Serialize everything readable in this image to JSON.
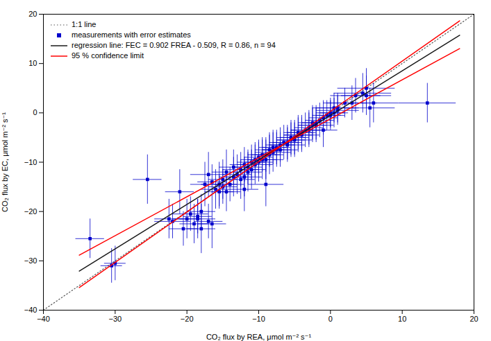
{
  "chart_data": {
    "type": "scatter",
    "xlabel": "CO₂ flux by REA, μmol m⁻² s⁻¹",
    "ylabel": "CO₂ flux by EC, μmol m⁻² s⁻¹",
    "xlim": [
      -40,
      20
    ],
    "ylim": [
      -40,
      20
    ],
    "xticks": [
      -40,
      -30,
      -20,
      -10,
      0,
      10,
      20
    ],
    "yticks": [
      -40,
      -30,
      -20,
      -10,
      0,
      10,
      20
    ],
    "grid": false,
    "legend": "upper left",
    "series": [
      {
        "name": "1:1 line",
        "type": "line",
        "line_style": "dotted",
        "color": "#555555",
        "x": [
          -40,
          20
        ],
        "y": [
          -40,
          20
        ]
      },
      {
        "name": "measurements with error estimates",
        "type": "scatter",
        "marker": "square",
        "color": "#0000cc",
        "x": [
          -33.5,
          -30.5,
          -30.0,
          -25.5,
          -22.5,
          -22.0,
          -21.0,
          -20.5,
          -20.0,
          -19.5,
          -19.0,
          -18.5,
          -18.5,
          -18.0,
          -18.0,
          -17.5,
          -17.0,
          -17.0,
          -16.5,
          -16.5,
          -16.0,
          -15.5,
          -15.5,
          -15.0,
          -15.0,
          -14.5,
          -14.5,
          -14.0,
          -13.5,
          -13.5,
          -13.0,
          -12.5,
          -12.5,
          -12.0,
          -12.0,
          -12.0,
          -11.5,
          -11.5,
          -11.0,
          -11.0,
          -10.5,
          -10.5,
          -10.0,
          -10.0,
          -9.5,
          -9.5,
          -9.0,
          -9.0,
          -9.0,
          -8.5,
          -8.5,
          -8.0,
          -8.0,
          -7.5,
          -7.5,
          -7.0,
          -7.0,
          -6.5,
          -6.0,
          -6.0,
          -5.5,
          -5.5,
          -5.0,
          -5.0,
          -4.5,
          -4.5,
          -4.0,
          -4.0,
          -3.5,
          -3.0,
          -3.0,
          -2.5,
          -2.5,
          -2.0,
          -2.0,
          -1.5,
          -1.0,
          -1.0,
          -0.5,
          0.0,
          0.0,
          0.5,
          0.5,
          1.0,
          1.0,
          2.0,
          3.0,
          3.5,
          4.5,
          5.0,
          5.0,
          5.5,
          6.0,
          13.5
        ],
        "y": [
          -25.5,
          -31.0,
          -30.5,
          -13.5,
          -21.5,
          -22.0,
          -16.0,
          -23.5,
          -21.5,
          -20.5,
          -22.5,
          -21.0,
          -21.5,
          -20.0,
          -23.5,
          -14.5,
          -22.0,
          -12.5,
          -14.0,
          -22.5,
          -15.5,
          -16.0,
          -14.5,
          -13.5,
          -15.0,
          -16.0,
          -12.0,
          -14.5,
          -13.0,
          -11.0,
          -12.5,
          -11.5,
          -13.5,
          -10.5,
          -13.0,
          -15.5,
          -11.0,
          -12.0,
          -10.0,
          -11.5,
          -9.5,
          -10.5,
          -9.0,
          -10.0,
          -8.5,
          -9.5,
          -8.5,
          -9.5,
          -14.5,
          -7.5,
          -8.5,
          -7.0,
          -8.0,
          -7.0,
          -7.5,
          -6.5,
          -7.5,
          -6.0,
          -6.0,
          -6.5,
          -5.5,
          -5.0,
          -5.0,
          -5.5,
          -4.5,
          -4.0,
          -4.0,
          -4.5,
          -3.5,
          -3.0,
          -3.5,
          -2.5,
          -2.0,
          -2.0,
          -2.5,
          -1.5,
          -1.0,
          -3.5,
          -0.5,
          -0.5,
          0.0,
          0.0,
          1.0,
          1.0,
          0.5,
          2.0,
          2.0,
          3.5,
          4.0,
          5.0,
          3.5,
          1.0,
          2.0,
          2.0
        ],
        "xerr": [
          2.0,
          1.5,
          1.5,
          2.0,
          2.0,
          2.5,
          2.0,
          2.0,
          2.0,
          2.5,
          2.0,
          2.0,
          2.5,
          2.0,
          2.0,
          2.0,
          2.0,
          2.5,
          2.0,
          2.0,
          2.0,
          2.0,
          2.5,
          2.0,
          2.0,
          2.0,
          2.0,
          2.0,
          2.0,
          2.0,
          2.0,
          2.5,
          2.0,
          2.0,
          2.5,
          2.0,
          2.0,
          2.0,
          2.0,
          2.0,
          2.0,
          2.5,
          2.0,
          2.0,
          2.0,
          2.0,
          2.0,
          2.5,
          2.5,
          2.0,
          2.0,
          2.0,
          2.5,
          2.0,
          2.0,
          2.0,
          2.5,
          2.0,
          2.0,
          2.5,
          2.0,
          2.0,
          2.0,
          2.5,
          2.0,
          2.0,
          2.0,
          2.5,
          2.0,
          2.0,
          2.5,
          2.0,
          2.0,
          2.0,
          2.5,
          2.0,
          2.0,
          2.0,
          2.0,
          2.0,
          2.0,
          2.0,
          3.0,
          3.0,
          3.0,
          3.0,
          3.5,
          3.5,
          4.0,
          4.0,
          3.5,
          3.5,
          3.5,
          4.0
        ],
        "yerr": [
          4.0,
          3.5,
          3.5,
          5.0,
          4.0,
          3.5,
          4.5,
          3.5,
          4.0,
          3.5,
          4.0,
          3.5,
          4.0,
          3.5,
          5.0,
          4.5,
          3.5,
          4.5,
          3.5,
          5.0,
          4.0,
          3.5,
          4.5,
          4.0,
          3.5,
          4.0,
          4.5,
          3.5,
          4.0,
          3.5,
          4.0,
          3.5,
          4.0,
          3.5,
          4.0,
          4.5,
          3.5,
          4.0,
          3.5,
          4.0,
          3.5,
          4.0,
          3.5,
          4.0,
          3.5,
          4.0,
          3.5,
          4.0,
          4.5,
          3.5,
          4.0,
          3.5,
          4.0,
          3.5,
          3.5,
          3.5,
          3.5,
          3.5,
          3.5,
          3.5,
          3.5,
          3.5,
          3.5,
          3.5,
          3.5,
          3.5,
          3.5,
          3.5,
          3.5,
          3.5,
          3.5,
          3.5,
          3.5,
          3.5,
          3.5,
          3.5,
          3.5,
          3.5,
          3.0,
          3.0,
          3.0,
          3.0,
          3.0,
          3.0,
          3.0,
          3.0,
          3.5,
          3.5,
          4.0,
          4.0,
          4.0,
          4.0,
          4.0,
          4.0
        ]
      },
      {
        "name": "regression line: FEC = 0.902 FREA - 0.509, R = 0.86, n = 94",
        "type": "line",
        "line_style": "solid",
        "color": "#1a1a1a",
        "x": [
          -35.0,
          18.0
        ],
        "y": [
          -32.079,
          15.727
        ]
      },
      {
        "name": "95 % confidence limit",
        "type": "line",
        "line_style": "solid",
        "color": "#ff0000",
        "x": [
          -35.0,
          18.0,
          null,
          -35.0,
          18.0
        ],
        "y": [
          -35.4,
          18.66,
          null,
          -28.85,
          13.02
        ]
      }
    ]
  }
}
